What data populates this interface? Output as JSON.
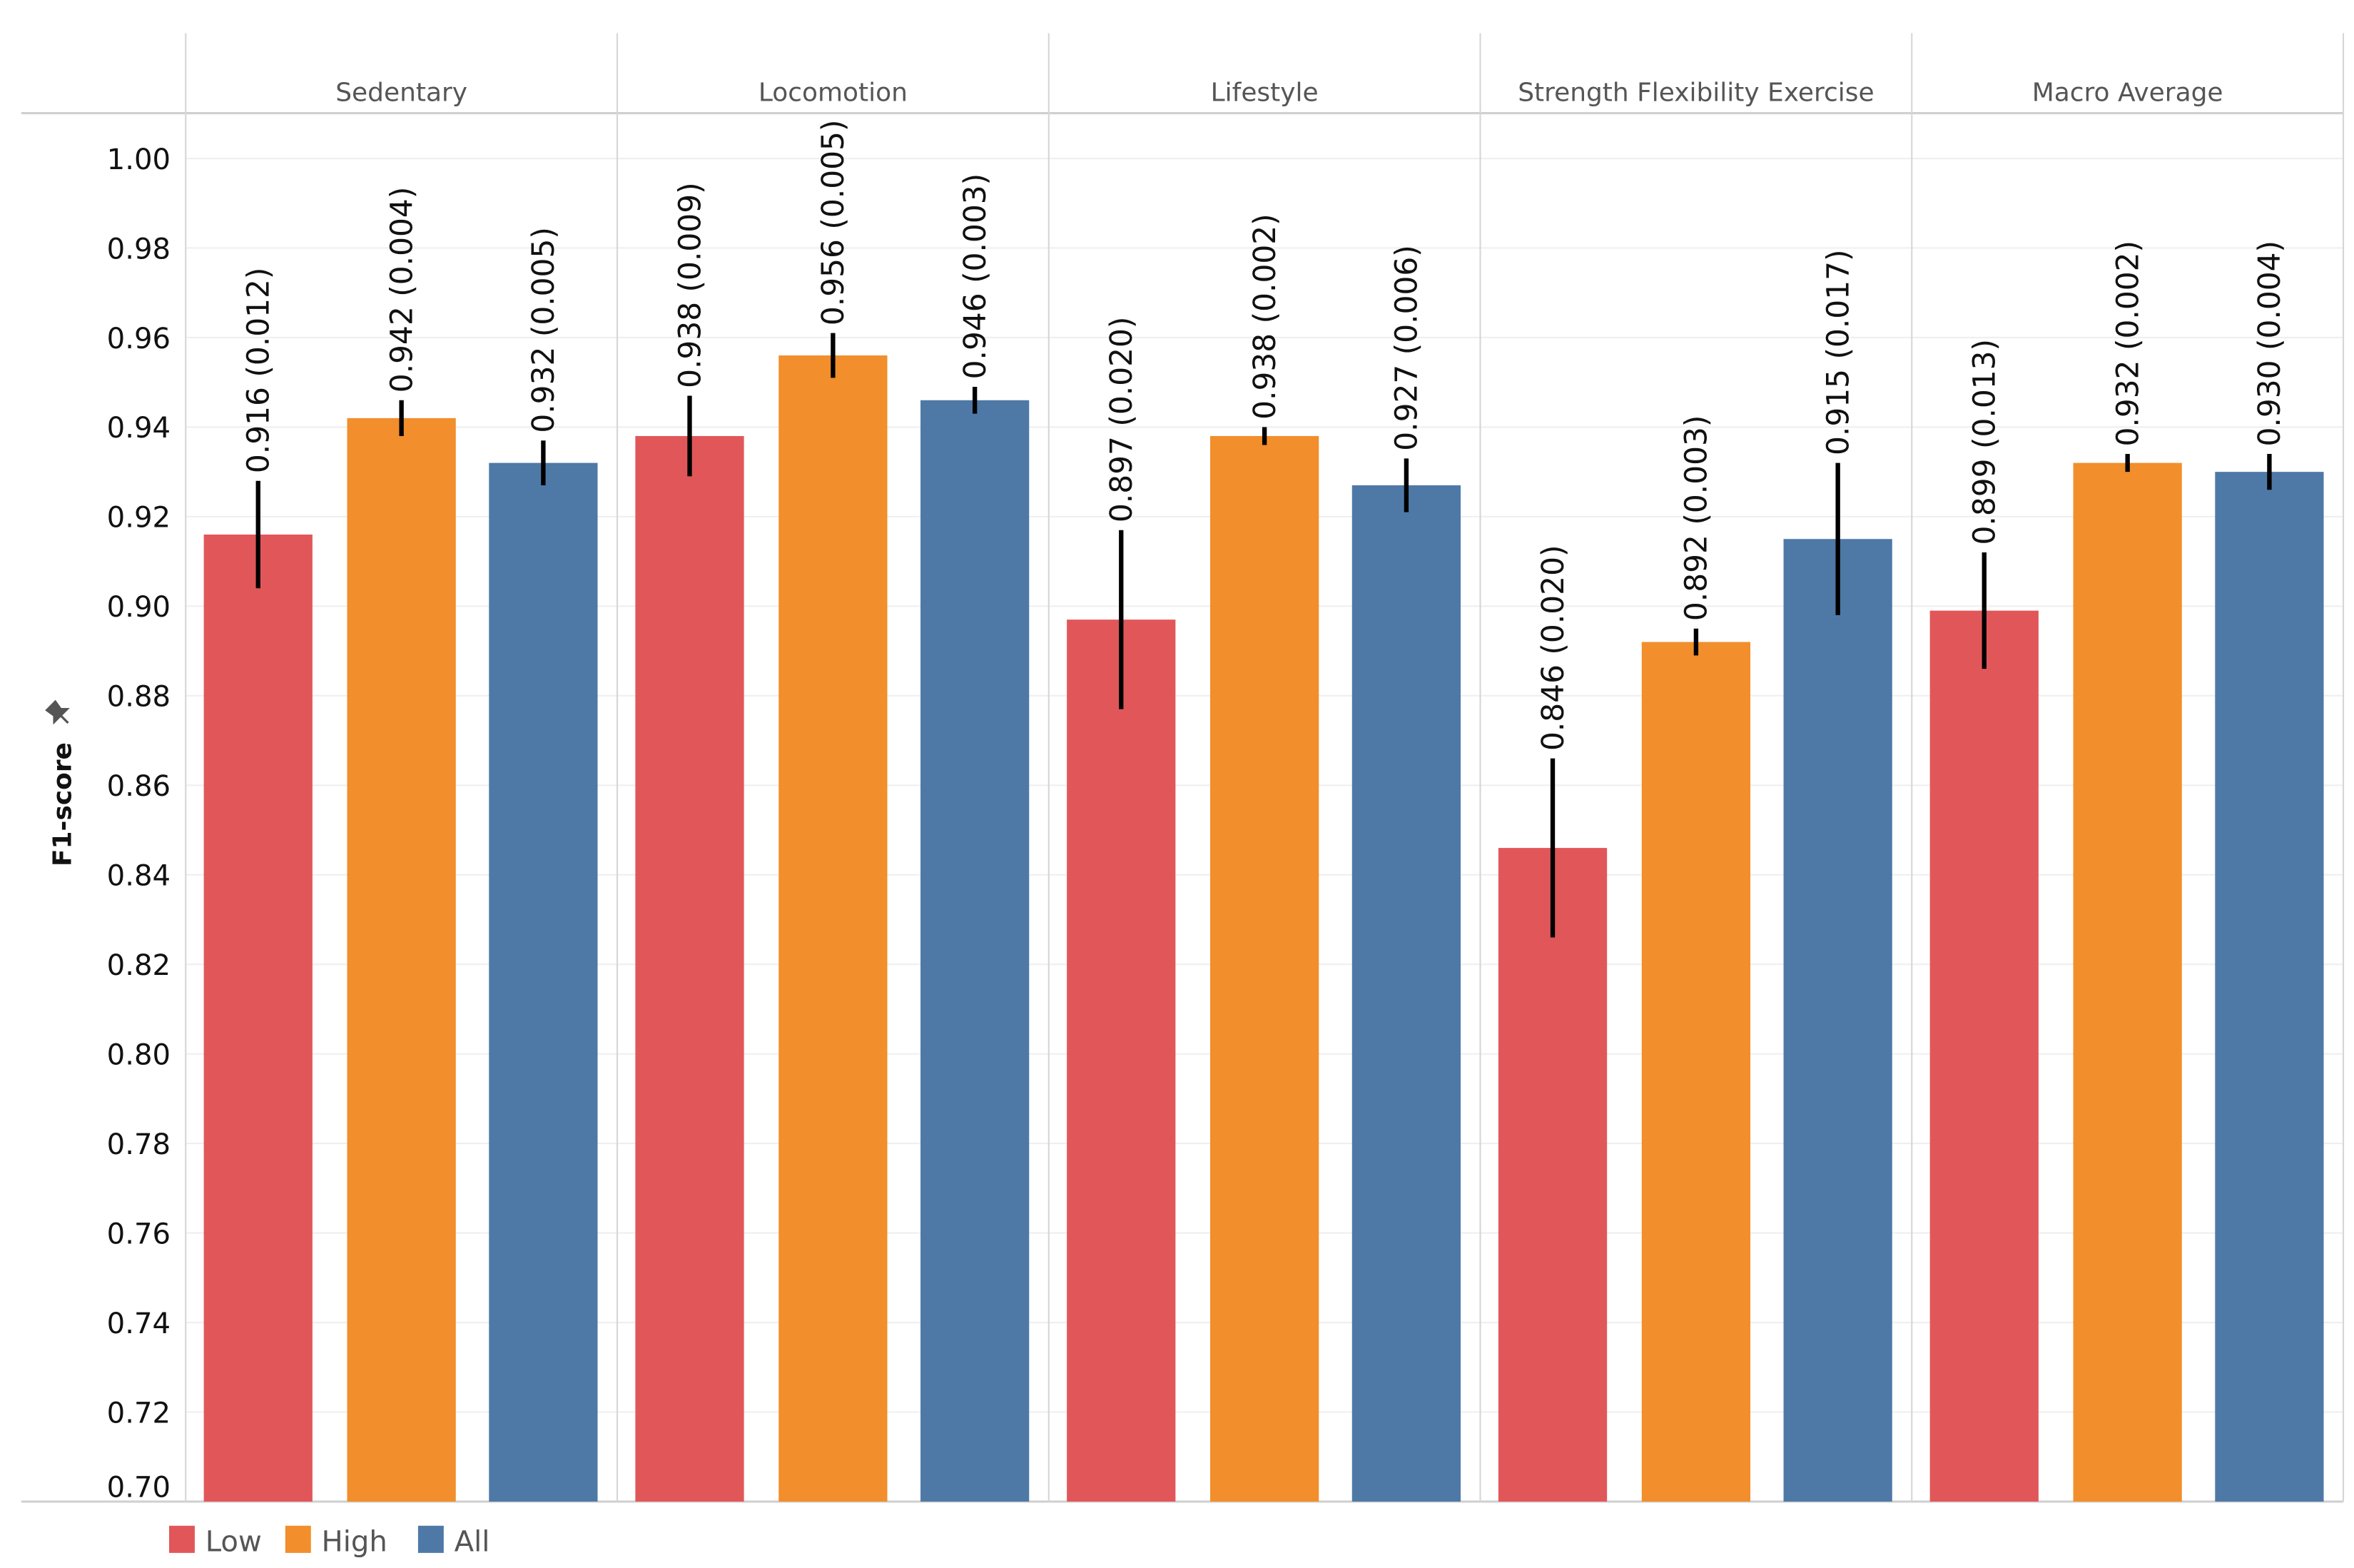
{
  "chart_data": {
    "type": "bar",
    "title": "",
    "xlabel": "",
    "ylabel": "F1-score",
    "ylim": [
      0.7,
      1.0
    ],
    "yticks": [
      "0.70",
      "0.72",
      "0.74",
      "0.76",
      "0.78",
      "0.80",
      "0.82",
      "0.84",
      "0.86",
      "0.88",
      "0.90",
      "0.92",
      "0.94",
      "0.96",
      "0.98",
      "1.00"
    ],
    "grid": true,
    "legend_placement": "bottom-left",
    "categories": [
      "Sedentary",
      "Locomotion",
      "Lifestyle",
      "Strength Flexibility Exercise",
      "Macro Average"
    ],
    "series": [
      {
        "name": "Low",
        "color": "#E15759",
        "values": [
          0.916,
          0.938,
          0.897,
          0.846,
          0.899
        ],
        "errors": [
          0.012,
          0.009,
          0.02,
          0.02,
          0.013
        ],
        "labels": [
          "0.916 (0.012)",
          "0.938 (0.009)",
          "0.897 (0.020)",
          "0.846 (0.020)",
          "0.899 (0.013)"
        ]
      },
      {
        "name": "High",
        "color": "#F28E2B",
        "values": [
          0.942,
          0.956,
          0.938,
          0.892,
          0.932
        ],
        "errors": [
          0.004,
          0.005,
          0.002,
          0.003,
          0.002
        ],
        "labels": [
          "0.942 (0.004)",
          "0.956 (0.005)",
          "0.938 (0.002)",
          "0.892 (0.003)",
          "0.932 (0.002)"
        ]
      },
      {
        "name": "All",
        "color": "#4E79A7",
        "values": [
          0.932,
          0.946,
          0.927,
          0.915,
          0.93
        ],
        "errors": [
          0.005,
          0.003,
          0.006,
          0.017,
          0.004
        ],
        "labels": [
          "0.932 (0.005)",
          "0.946 (0.003)",
          "0.927 (0.006)",
          "0.915 (0.017)",
          "0.930 (0.004)"
        ]
      }
    ]
  }
}
